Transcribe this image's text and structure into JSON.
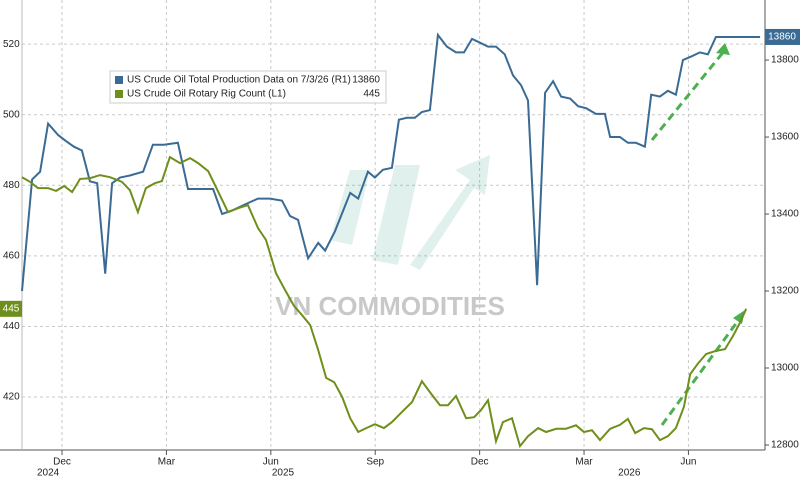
{
  "chart_data": {
    "type": "line",
    "watermark": "VN COMMODITIES",
    "xlim": [
      -1.15,
      20.2
    ],
    "xticks": [
      {
        "value": 0,
        "label": "Dec"
      },
      {
        "value": 3,
        "label": "Mar"
      },
      {
        "value": 6,
        "label": "Jun"
      },
      {
        "value": 9,
        "label": "Sep"
      },
      {
        "value": 12,
        "label": "Dec"
      },
      {
        "value": 15,
        "label": "Mar"
      },
      {
        "value": 18,
        "label": "Jun"
      }
    ],
    "year_labels": [
      {
        "value": -0.4,
        "label": "2024"
      },
      {
        "value": 6.35,
        "label": "2025"
      },
      {
        "value": 16.3,
        "label": "2026"
      }
    ],
    "ylim": [
      405,
      532.5
    ],
    "yticks": [
      420,
      440,
      460,
      480,
      500,
      520
    ],
    "y2lim": [
      12787,
      13956
    ],
    "y2ticks": [
      12800,
      13000,
      13200,
      13400,
      13600,
      13800
    ],
    "grid": true,
    "legend": "upper left",
    "series": [
      {
        "name": "US Crude Oil Total Production Data on 7/3/26 (R1)",
        "color": "#3a6b94",
        "axis": "y2",
        "legend_value": 13860,
        "x": [
          -1.15,
          -0.86,
          -0.63,
          -0.4,
          -0.11,
          0.11,
          0.34,
          0.57,
          0.8,
          1.01,
          1.24,
          1.44,
          1.67,
          1.95,
          2.33,
          2.61,
          2.93,
          3.33,
          3.62,
          3.91,
          4.34,
          4.6,
          4.91,
          5.26,
          5.63,
          5.98,
          6.32,
          6.55,
          6.78,
          7.07,
          7.36,
          7.56,
          7.84,
          8.28,
          8.51,
          8.79,
          8.99,
          9.22,
          9.48,
          9.68,
          9.91,
          10.14,
          10.34,
          10.57,
          10.8,
          11.06,
          11.32,
          11.55,
          11.78,
          12.01,
          12.24,
          12.47,
          12.72,
          12.96,
          13.19,
          13.39,
          13.65,
          13.88,
          14.11,
          14.34,
          14.6,
          14.83,
          15.06,
          15.34,
          15.6,
          15.75,
          16.03,
          16.26,
          16.49,
          16.75,
          16.93,
          17.18,
          17.41,
          17.64,
          17.84,
          18.1,
          18.33,
          18.56,
          18.79,
          20.06
        ],
        "values": [
          13200,
          13490,
          13510,
          13635,
          13605,
          13590,
          13575,
          13565,
          13485,
          13480,
          13245,
          13480,
          13495,
          13500,
          13510,
          13580,
          13580,
          13585,
          13465,
          13465,
          13465,
          13400,
          13410,
          13425,
          13440,
          13440,
          13435,
          13395,
          13385,
          13285,
          13325,
          13305,
          13355,
          13455,
          13440,
          13510,
          13495,
          13515,
          13520,
          13645,
          13650,
          13650,
          13665,
          13670,
          13865,
          13835,
          13820,
          13820,
          13855,
          13845,
          13835,
          13835,
          13815,
          13760,
          13735,
          13695,
          13215,
          13715,
          13745,
          13705,
          13700,
          13680,
          13675,
          13660,
          13660,
          13600,
          13600,
          13585,
          13585,
          13575,
          13710,
          13705,
          13720,
          13710,
          13800,
          13810,
          13820,
          13815,
          13860,
          13860
        ]
      },
      {
        "name": "US Crude Oil Rotary Rig Count (L1)",
        "color": "#6f8f1c",
        "axis": "y",
        "legend_value": 445,
        "x": [
          -1.15,
          -0.92,
          -0.69,
          -0.4,
          -0.17,
          0.06,
          0.29,
          0.52,
          0.8,
          1.09,
          1.38,
          1.72,
          1.95,
          2.18,
          2.41,
          2.67,
          2.87,
          3.1,
          3.39,
          3.68,
          3.91,
          4.2,
          4.4,
          4.77,
          5.06,
          5.34,
          5.63,
          5.86,
          6.15,
          6.41,
          6.67,
          6.9,
          7.13,
          7.36,
          7.59,
          7.82,
          8.05,
          8.28,
          8.51,
          8.74,
          8.99,
          9.25,
          9.48,
          9.77,
          10.06,
          10.34,
          10.57,
          10.86,
          11.09,
          11.32,
          11.61,
          11.84,
          12.04,
          12.24,
          12.47,
          12.67,
          12.93,
          13.16,
          13.39,
          13.68,
          13.91,
          14.2,
          14.48,
          14.77,
          15.0,
          15.23,
          15.46,
          15.75,
          16.03,
          16.26,
          16.47,
          16.72,
          16.95,
          17.18,
          17.41,
          17.64,
          17.87,
          18.05,
          18.28,
          18.51,
          18.76,
          19.05,
          19.28,
          19.48,
          19.66
        ],
        "values": [
          482.3,
          481,
          479.2,
          479.2,
          478.4,
          479.8,
          478.1,
          481.8,
          482,
          482.9,
          482.3,
          481,
          478.6,
          472.4,
          479.2,
          480.6,
          481.2,
          488,
          486.3,
          487.7,
          486.3,
          484,
          480,
          472.4,
          473.5,
          474.4,
          467.9,
          464.5,
          455.1,
          450.3,
          445.8,
          443.2,
          440.4,
          433.3,
          425.4,
          424.2,
          420,
          414,
          410.1,
          411.2,
          412.3,
          411.2,
          412.9,
          415.8,
          418.6,
          424.5,
          421.4,
          417.7,
          417.7,
          420.3,
          414,
          414.3,
          416.3,
          419.1,
          407.5,
          412.9,
          414,
          406.1,
          408.9,
          411.2,
          410.1,
          411,
          411,
          412,
          410.1,
          410.6,
          407.8,
          411,
          412.1,
          413.8,
          409.8,
          411.2,
          410.9,
          407.8,
          408.9,
          411.2,
          417.2,
          426.5,
          429.6,
          432.2,
          433,
          433.6,
          437.3,
          441,
          445
        ]
      }
    ]
  }
}
